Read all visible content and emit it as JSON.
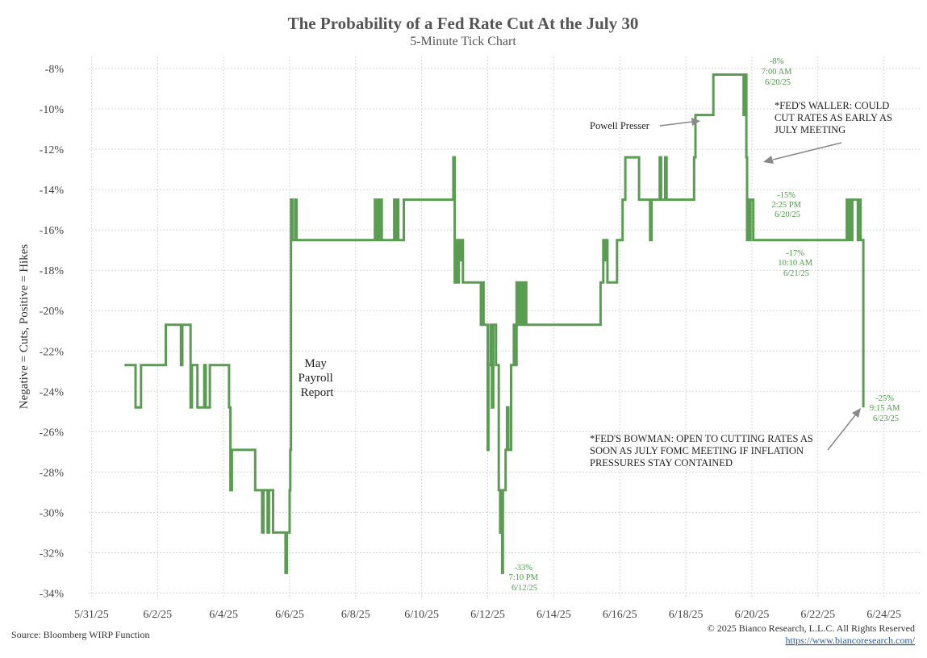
{
  "chart_data": {
    "type": "line",
    "title": "The Probability of a Fed Rate Cut At the July 30",
    "subtitle": "5-Minute Tick Chart",
    "ylabel": "Negative = Cuts, Positive = Hikes",
    "xlabel": "",
    "x_ticks": [
      "5/31/25",
      "6/2/25",
      "6/4/25",
      "6/6/25",
      "6/8/25",
      "6/10/25",
      "6/12/25",
      "6/14/25",
      "6/16/25",
      "6/18/25",
      "6/20/25",
      "6/22/25",
      "6/24/25"
    ],
    "y_ticks": [
      "-8%",
      "-10%",
      "-12%",
      "-14%",
      "-16%",
      "-18%",
      "-20%",
      "-22%",
      "-24%",
      "-26%",
      "-28%",
      "-30%",
      "-32%",
      "-34%"
    ],
    "ylim": [
      -34.3,
      -7.4
    ],
    "xlim": [
      "2025-05-30T22:00",
      "2025-06-25T02:00"
    ],
    "grid": true,
    "series": [
      {
        "color": "#5b9c53",
        "points": [
          [
            "2025-06-01T00:00",
            -22.7
          ],
          [
            "2025-06-01T08:00",
            -22.7
          ],
          [
            "2025-06-01T08:00",
            -24.8
          ],
          [
            "2025-06-01T12:00",
            -24.8
          ],
          [
            "2025-06-01T12:00",
            -22.7
          ],
          [
            "2025-06-02T06:00",
            -22.7
          ],
          [
            "2025-06-02T06:00",
            -20.7
          ],
          [
            "2025-06-02T17:00",
            -20.7
          ],
          [
            "2025-06-02T17:00",
            -22.7
          ],
          [
            "2025-06-02T18:00",
            -22.7
          ],
          [
            "2025-06-02T18:00",
            -20.7
          ],
          [
            "2025-06-03T00:00",
            -20.7
          ],
          [
            "2025-06-03T00:00",
            -24.8
          ],
          [
            "2025-06-03T01:00",
            -24.8
          ],
          [
            "2025-06-03T01:00",
            -22.7
          ],
          [
            "2025-06-03T05:00",
            -22.7
          ],
          [
            "2025-06-03T05:00",
            -24.8
          ],
          [
            "2025-06-03T10:00",
            -24.8
          ],
          [
            "2025-06-03T10:00",
            -22.7
          ],
          [
            "2025-06-03T11:00",
            -22.7
          ],
          [
            "2025-06-03T11:00",
            -24.8
          ],
          [
            "2025-06-03T14:00",
            -24.8
          ],
          [
            "2025-06-03T14:00",
            -22.7
          ],
          [
            "2025-06-04T04:00",
            -22.7
          ],
          [
            "2025-06-04T04:00",
            -24.8
          ],
          [
            "2025-06-04T05:00",
            -24.8
          ],
          [
            "2025-06-04T05:00",
            -28.9
          ],
          [
            "2025-06-04T06:00",
            -28.9
          ],
          [
            "2025-06-04T06:00",
            -26.9
          ],
          [
            "2025-06-04T23:00",
            -26.9
          ],
          [
            "2025-06-04T23:00",
            -28.9
          ],
          [
            "2025-06-05T04:00",
            -28.9
          ],
          [
            "2025-06-05T04:00",
            -31.0
          ],
          [
            "2025-06-05T05:00",
            -31.0
          ],
          [
            "2025-06-05T05:00",
            -28.9
          ],
          [
            "2025-06-05T08:00",
            -28.9
          ],
          [
            "2025-06-05T08:00",
            -31.0
          ],
          [
            "2025-06-05T09:00",
            -31.0
          ],
          [
            "2025-06-05T09:00",
            -28.9
          ],
          [
            "2025-06-05T12:00",
            -28.9
          ],
          [
            "2025-06-05T12:00",
            -31.0
          ],
          [
            "2025-06-05T21:00",
            -31.0
          ],
          [
            "2025-06-05T21:00",
            -33.0
          ],
          [
            "2025-06-05T22:00",
            -33.0
          ],
          [
            "2025-06-05T22:00",
            -31.0
          ],
          [
            "2025-06-06T00:00",
            -31.0
          ],
          [
            "2025-06-06T00:00",
            -28.9
          ],
          [
            "2025-06-06T00:30",
            -28.9
          ],
          [
            "2025-06-06T00:30",
            -26.9
          ],
          [
            "2025-06-06T01:00",
            -26.9
          ],
          [
            "2025-06-06T01:00",
            -14.5
          ],
          [
            "2025-06-06T02:00",
            -14.5
          ],
          [
            "2025-06-06T02:00",
            -16.5
          ],
          [
            "2025-06-06T04:00",
            -16.5
          ],
          [
            "2025-06-06T04:00",
            -14.5
          ],
          [
            "2025-06-06T05:00",
            -14.5
          ],
          [
            "2025-06-06T05:00",
            -16.5
          ],
          [
            "2025-06-08T14:00",
            -16.5
          ],
          [
            "2025-06-08T14:00",
            -14.5
          ],
          [
            "2025-06-08T15:00",
            -14.5
          ],
          [
            "2025-06-08T15:00",
            -16.5
          ],
          [
            "2025-06-08T16:00",
            -16.5
          ],
          [
            "2025-06-08T16:00",
            -14.5
          ],
          [
            "2025-06-08T17:00",
            -14.5
          ],
          [
            "2025-06-08T17:00",
            -16.5
          ],
          [
            "2025-06-08T18:00",
            -16.5
          ],
          [
            "2025-06-08T18:00",
            -14.5
          ],
          [
            "2025-06-08T19:00",
            -14.5
          ],
          [
            "2025-06-08T19:00",
            -16.5
          ],
          [
            "2025-06-09T04:00",
            -16.5
          ],
          [
            "2025-06-09T04:00",
            -14.5
          ],
          [
            "2025-06-09T05:00",
            -14.5
          ],
          [
            "2025-06-09T05:00",
            -16.5
          ],
          [
            "2025-06-09T06:00",
            -16.5
          ],
          [
            "2025-06-09T06:00",
            -14.5
          ],
          [
            "2025-06-09T07:00",
            -14.5
          ],
          [
            "2025-06-09T07:00",
            -16.5
          ],
          [
            "2025-06-09T11:00",
            -16.5
          ],
          [
            "2025-06-09T11:00",
            -14.5
          ],
          [
            "2025-06-10T23:00",
            -14.5
          ],
          [
            "2025-06-10T23:00",
            -12.4
          ],
          [
            "2025-06-11T00:00",
            -12.4
          ],
          [
            "2025-06-11T00:00",
            -18.6
          ],
          [
            "2025-06-11T01:00",
            -18.6
          ],
          [
            "2025-06-11T01:00",
            -16.5
          ],
          [
            "2025-06-11T02:00",
            -16.5
          ],
          [
            "2025-06-11T02:00",
            -18.6
          ],
          [
            "2025-06-11T03:00",
            -18.6
          ],
          [
            "2025-06-11T03:00",
            -16.5
          ],
          [
            "2025-06-11T04:00",
            -16.5
          ],
          [
            "2025-06-11T04:00",
            -17.5
          ],
          [
            "2025-06-11T05:00",
            -17.5
          ],
          [
            "2025-06-11T05:00",
            -16.5
          ],
          [
            "2025-06-11T06:00",
            -16.5
          ],
          [
            "2025-06-11T06:00",
            -18.6
          ],
          [
            "2025-06-11T19:00",
            -18.6
          ],
          [
            "2025-06-11T19:00",
            -20.7
          ],
          [
            "2025-06-11T20:00",
            -20.7
          ],
          [
            "2025-06-11T20:00",
            -18.6
          ],
          [
            "2025-06-11T21:00",
            -18.6
          ],
          [
            "2025-06-11T21:00",
            -20.7
          ],
          [
            "2025-06-12T00:00",
            -20.7
          ],
          [
            "2025-06-12T00:00",
            -26.9
          ],
          [
            "2025-06-12T00:30",
            -26.9
          ],
          [
            "2025-06-12T00:30",
            -22.7
          ],
          [
            "2025-06-12T02:00",
            -22.7
          ],
          [
            "2025-06-12T02:00",
            -20.7
          ],
          [
            "2025-06-12T03:00",
            -20.7
          ],
          [
            "2025-06-12T03:00",
            -24.8
          ],
          [
            "2025-06-12T04:00",
            -24.8
          ],
          [
            "2025-06-12T04:00",
            -20.7
          ],
          [
            "2025-06-12T06:00",
            -20.7
          ],
          [
            "2025-06-12T06:00",
            -22.7
          ],
          [
            "2025-06-12T08:00",
            -22.7
          ],
          [
            "2025-06-12T08:00",
            -28.9
          ],
          [
            "2025-06-12T09:00",
            -28.9
          ],
          [
            "2025-06-12T09:00",
            -31.0
          ],
          [
            "2025-06-12T10:00",
            -31.0
          ],
          [
            "2025-06-12T10:00",
            -28.9
          ],
          [
            "2025-06-12T10:30",
            -28.9
          ],
          [
            "2025-06-12T10:30",
            -33.0
          ],
          [
            "2025-06-12T11:00",
            -33.0
          ],
          [
            "2025-06-12T11:00",
            -28.9
          ],
          [
            "2025-06-12T13:00",
            -28.9
          ],
          [
            "2025-06-12T13:00",
            -26.9
          ],
          [
            "2025-06-12T14:00",
            -26.9
          ],
          [
            "2025-06-12T14:00",
            -24.8
          ],
          [
            "2025-06-12T15:00",
            -24.8
          ],
          [
            "2025-06-12T15:00",
            -26.9
          ],
          [
            "2025-06-12T17:00",
            -26.9
          ],
          [
            "2025-06-12T17:00",
            -22.7
          ],
          [
            "2025-06-12T19:00",
            -22.7
          ],
          [
            "2025-06-12T19:00",
            -20.7
          ],
          [
            "2025-06-12T20:00",
            -20.7
          ],
          [
            "2025-06-12T20:00",
            -22.7
          ],
          [
            "2025-06-12T21:00",
            -22.7
          ],
          [
            "2025-06-12T21:00",
            -18.6
          ],
          [
            "2025-06-12T22:00",
            -18.6
          ],
          [
            "2025-06-12T22:00",
            -20.7
          ],
          [
            "2025-06-12T23:00",
            -20.7
          ],
          [
            "2025-06-12T23:00",
            -18.6
          ],
          [
            "2025-06-13T00:00",
            -18.6
          ],
          [
            "2025-06-13T00:00",
            -20.7
          ],
          [
            "2025-06-13T01:00",
            -20.7
          ],
          [
            "2025-06-13T01:00",
            -18.6
          ],
          [
            "2025-06-13T02:00",
            -18.6
          ],
          [
            "2025-06-13T02:00",
            -20.7
          ],
          [
            "2025-06-13T03:00",
            -20.7
          ],
          [
            "2025-06-13T03:00",
            -18.6
          ],
          [
            "2025-06-13T04:00",
            -18.6
          ],
          [
            "2025-06-13T04:00",
            -20.7
          ],
          [
            "2025-06-15T10:00",
            -20.7
          ],
          [
            "2025-06-15T10:00",
            -18.6
          ],
          [
            "2025-06-15T12:00",
            -18.6
          ],
          [
            "2025-06-15T12:00",
            -16.5
          ],
          [
            "2025-06-15T13:00",
            -16.5
          ],
          [
            "2025-06-15T13:00",
            -17.5
          ],
          [
            "2025-06-15T14:00",
            -17.5
          ],
          [
            "2025-06-15T14:00",
            -16.5
          ],
          [
            "2025-06-15T15:00",
            -16.5
          ],
          [
            "2025-06-15T15:00",
            -18.6
          ],
          [
            "2025-06-15T22:00",
            -18.6
          ],
          [
            "2025-06-15T22:00",
            -16.5
          ],
          [
            "2025-06-16T02:00",
            -16.5
          ],
          [
            "2025-06-16T02:00",
            -14.5
          ],
          [
            "2025-06-16T04:00",
            -14.5
          ],
          [
            "2025-06-16T04:00",
            -12.4
          ],
          [
            "2025-06-16T14:00",
            -12.4
          ],
          [
            "2025-06-16T14:00",
            -14.5
          ],
          [
            "2025-06-16T22:00",
            -14.5
          ],
          [
            "2025-06-16T22:00",
            -16.5
          ],
          [
            "2025-06-16T23:00",
            -16.5
          ],
          [
            "2025-06-16T23:00",
            -14.5
          ],
          [
            "2025-06-17T05:00",
            -14.5
          ],
          [
            "2025-06-17T05:00",
            -12.4
          ],
          [
            "2025-06-17T06:00",
            -12.4
          ],
          [
            "2025-06-17T06:00",
            -14.5
          ],
          [
            "2025-06-17T09:00",
            -14.5
          ],
          [
            "2025-06-17T09:00",
            -12.4
          ],
          [
            "2025-06-17T10:00",
            -12.4
          ],
          [
            "2025-06-17T10:00",
            -14.5
          ],
          [
            "2025-06-18T06:00",
            -14.5
          ],
          [
            "2025-06-18T06:00",
            -12.4
          ],
          [
            "2025-06-18T07:00",
            -12.4
          ],
          [
            "2025-06-18T07:00",
            -10.3
          ],
          [
            "2025-06-18T20:00",
            -10.3
          ],
          [
            "2025-06-18T20:00",
            -8.3
          ],
          [
            "2025-06-19T18:00",
            -8.3
          ],
          [
            "2025-06-19T18:00",
            -10.3
          ],
          [
            "2025-06-19T19:00",
            -10.3
          ],
          [
            "2025-06-19T19:00",
            -8.3
          ],
          [
            "2025-06-19T20:00",
            -8.3
          ],
          [
            "2025-06-19T20:00",
            -12.4
          ],
          [
            "2025-06-19T20:30",
            -12.4
          ],
          [
            "2025-06-19T20:30",
            -16.5
          ],
          [
            "2025-06-19T21:00",
            -16.5
          ],
          [
            "2025-06-19T21:00",
            -14.5
          ],
          [
            "2025-06-19T22:00",
            -14.5
          ],
          [
            "2025-06-19T22:00",
            -16.5
          ],
          [
            "2025-06-19T23:00",
            -16.5
          ],
          [
            "2025-06-19T23:00",
            -14.5
          ],
          [
            "2025-06-20T01:00",
            -14.5
          ],
          [
            "2025-06-20T01:00",
            -16.5
          ],
          [
            "2025-06-22T21:00",
            -16.5
          ],
          [
            "2025-06-22T21:00",
            -14.5
          ],
          [
            "2025-06-22T22:00",
            -14.5
          ],
          [
            "2025-06-22T22:00",
            -16.5
          ],
          [
            "2025-06-22T23:00",
            -16.5
          ],
          [
            "2025-06-22T23:00",
            -14.5
          ],
          [
            "2025-06-23T00:00",
            -14.5
          ],
          [
            "2025-06-23T00:00",
            -16.5
          ],
          [
            "2025-06-23T01:00",
            -16.5
          ],
          [
            "2025-06-23T01:00",
            -14.5
          ],
          [
            "2025-06-23T05:00",
            -14.5
          ],
          [
            "2025-06-23T05:00",
            -16.5
          ],
          [
            "2025-06-23T06:00",
            -16.5
          ],
          [
            "2025-06-23T06:00",
            -14.5
          ],
          [
            "2025-06-23T07:00",
            -14.5
          ],
          [
            "2025-06-23T07:00",
            -16.5
          ],
          [
            "2025-06-23T09:00",
            -16.5
          ],
          [
            "2025-06-23T09:00",
            -24.8
          ]
        ]
      }
    ],
    "annotations": [
      {
        "lines": [
          "-8%",
          "7:00 AM",
          "6/20/25"
        ],
        "style": "green"
      },
      {
        "lines": [
          "-15%",
          "2:25 PM",
          "6/20/25"
        ],
        "style": "green"
      },
      {
        "lines": [
          "-17%",
          "10:10 AM",
          "6/21/25"
        ],
        "style": "green"
      },
      {
        "lines": [
          "-33%",
          "7:10 PM",
          "6/12/25"
        ],
        "style": "green"
      },
      {
        "lines": [
          "-25%",
          "9:15 AM",
          "6/23/25"
        ],
        "style": "green"
      },
      {
        "lines": [
          "May",
          "Payroll",
          "Report"
        ],
        "style": "big"
      },
      {
        "lines": [
          "Powell Presser"
        ],
        "style": "dark"
      },
      {
        "lines": [
          "*FED'S WALLER: COULD",
          "CUT RATES AS EARLY AS",
          "JULY MEETING"
        ],
        "style": "dark"
      },
      {
        "lines": [
          "*FED'S BOWMAN: OPEN TO CUTTING RATES AS",
          "SOON AS JULY FOMC MEETING IF INFLATION",
          "PRESSURES STAY CONTAINED"
        ],
        "style": "dark"
      }
    ]
  },
  "footer": {
    "source": "Source: Bloomberg WIRP Function",
    "copyright": "© 2025 Bianco Research, L.L.C. All Rights Reserved",
    "url": "https://www.biancoresearch.com/"
  }
}
